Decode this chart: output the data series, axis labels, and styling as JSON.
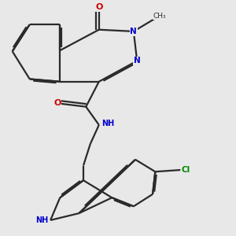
{
  "background_color": "#e8e8e8",
  "bond_color": "#2a2a2a",
  "nitrogen_color": "#0000cc",
  "oxygen_color": "#cc0000",
  "chlorine_color": "#008800",
  "lw": 1.6,
  "dbo": 0.06,
  "figsize": [
    3.0,
    3.0
  ],
  "dpi": 100,
  "xlim": [
    0,
    10
  ],
  "ylim": [
    0,
    10
  ]
}
